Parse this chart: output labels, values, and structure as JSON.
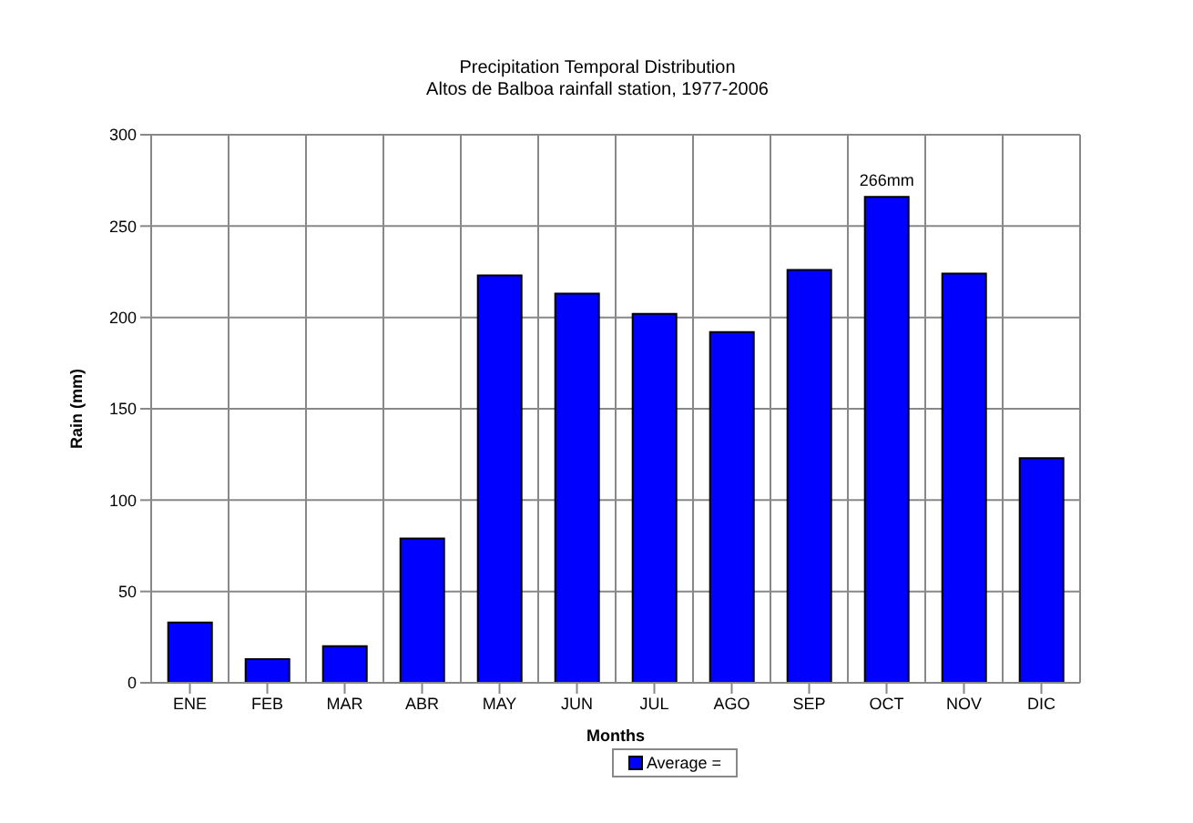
{
  "chart_data": {
    "type": "bar",
    "title": "Precipitation Temporal Distribution",
    "subtitle": "Altos de Balboa rainfall station, 1977-2006",
    "xlabel": "Months",
    "ylabel": "Rain (mm)",
    "categories": [
      "ENE",
      "FEB",
      "MAR",
      "ABR",
      "MAY",
      "JUN",
      "JUL",
      "AGO",
      "SEP",
      "OCT",
      "NOV",
      "DIC"
    ],
    "series": [
      {
        "name": "Average =",
        "color": "#0000ff",
        "values": [
          33,
          13,
          20,
          79,
          223,
          213,
          202,
          192,
          226,
          266,
          224,
          123
        ],
        "value_labels": [
          null,
          null,
          null,
          null,
          null,
          null,
          null,
          null,
          null,
          "266mm",
          null,
          null
        ]
      }
    ],
    "ylim": [
      0,
      300
    ],
    "yticks": [
      0,
      50,
      100,
      150,
      200,
      250,
      300
    ],
    "grid": true,
    "legend": "bottom"
  }
}
